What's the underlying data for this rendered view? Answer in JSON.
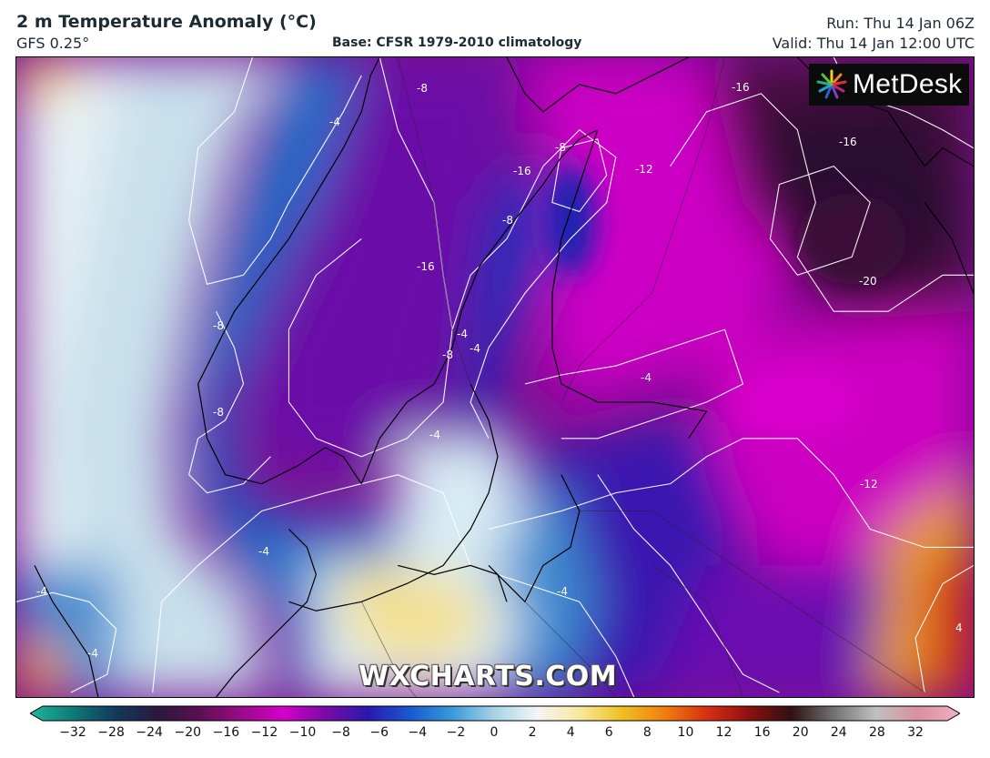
{
  "header": {
    "title": "2 m Temperature Anomaly (°C)",
    "model": "GFS 0.25°",
    "base": "Base: CFSR 1979-2010 climatology",
    "run": "Run: Thu 14 Jan 06Z",
    "valid": "Valid: Thu 14 Jan 12:00 UTC"
  },
  "logo": {
    "text": "MetDesk",
    "icon": "metdesk-starburst-icon"
  },
  "watermark": "WXCHARTS.COM",
  "map": {
    "region": "Scandinavia, Baltic and Northern Europe",
    "contour_labels": [
      {
        "id": "c1",
        "text": "-8"
      },
      {
        "id": "c2",
        "text": "-16"
      },
      {
        "id": "c3",
        "text": "-4"
      },
      {
        "id": "c4",
        "text": "-8"
      },
      {
        "id": "c5",
        "text": "-16"
      },
      {
        "id": "c6",
        "text": "-12"
      },
      {
        "id": "c7",
        "text": "-16"
      },
      {
        "id": "c8",
        "text": "-8"
      },
      {
        "id": "c9",
        "text": "-16"
      },
      {
        "id": "c10",
        "text": "-20"
      },
      {
        "id": "c11",
        "text": "-8"
      },
      {
        "id": "c12",
        "text": "-4"
      },
      {
        "id": "c13",
        "text": "-8"
      },
      {
        "id": "c14",
        "text": "-4"
      },
      {
        "id": "c15",
        "text": "-4"
      },
      {
        "id": "c16",
        "text": "-8"
      },
      {
        "id": "c17",
        "text": "-12"
      },
      {
        "id": "c18",
        "text": "-4"
      },
      {
        "id": "c19",
        "text": "-4"
      },
      {
        "id": "c20",
        "text": "-4"
      },
      {
        "id": "c21",
        "text": "4"
      },
      {
        "id": "c22",
        "text": "-4"
      },
      {
        "id": "c23",
        "text": "-4"
      }
    ]
  },
  "colorbar": {
    "ticks": [
      "−32",
      "−28",
      "−24",
      "−20",
      "−16",
      "−12",
      "−10",
      "−8",
      "−6",
      "−4",
      "−2",
      "0",
      "2",
      "4",
      "6",
      "8",
      "10",
      "12",
      "16",
      "20",
      "24",
      "28",
      "32"
    ],
    "colors": [
      "#1fb89a",
      "#0f7a7a",
      "#123a5a",
      "#2a1840",
      "#5a1050",
      "#9a0a88",
      "#d400c8",
      "#7a0aa8",
      "#2a18b0",
      "#1a5ad0",
      "#3a9ad8",
      "#a8d4e8",
      "#f4f4f4",
      "#f8e8a0",
      "#f0c020",
      "#f08010",
      "#d83010",
      "#901010",
      "#301010",
      "#707070",
      "#c0c0c0",
      "#d890a0",
      "#f0b0c0"
    ]
  }
}
